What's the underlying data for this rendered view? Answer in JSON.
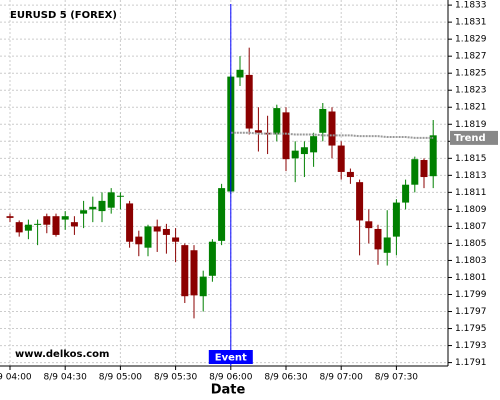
{
  "chart_data": {
    "type": "candlestick",
    "title": "EURUSD 5 (FOREX)",
    "watermark": "www.delkos.com",
    "x_label": "Date",
    "categories": [
      "8/9 04:00",
      null,
      null,
      null,
      null,
      null,
      "8/9 04:30",
      null,
      null,
      null,
      null,
      null,
      "8/9 05:00",
      null,
      null,
      null,
      null,
      null,
      "8/9 05:30",
      null,
      null,
      null,
      null,
      null,
      "8/9 06:00",
      null,
      null,
      null,
      null,
      null,
      "8/9 06:30",
      null,
      null,
      null,
      null,
      null,
      "8/9 07:00",
      null,
      null,
      null,
      null,
      null,
      "8/9 07:30",
      null,
      null,
      null,
      null
    ],
    "open": [
      1.18082,
      1.18075,
      1.18065,
      1.18072,
      1.18082,
      1.18082,
      1.18078,
      1.18075,
      1.18085,
      1.1809,
      1.18088,
      1.18092,
      1.18105,
      1.18097,
      1.18058,
      1.18045,
      1.1807,
      1.18067,
      1.18057,
      1.18048,
      1.18042,
      1.17988,
      1.18012,
      1.18053,
      1.18111,
      1.18245,
      1.18248,
      1.18183,
      1.1818,
      1.18178,
      1.18204,
      1.1815,
      1.18155,
      1.18157,
      1.1818,
      1.18205,
      1.18165,
      1.18134,
      1.18122,
      1.18076,
      1.18067,
      1.18039,
      1.18058,
      1.18098,
      1.18119,
      1.18148,
      1.18129
    ],
    "high": [
      1.18085,
      1.18077,
      1.18078,
      1.18078,
      1.18085,
      1.18085,
      1.18088,
      1.18082,
      1.181,
      1.18105,
      1.1811,
      1.18115,
      1.1811,
      1.181,
      1.18065,
      1.18072,
      1.18078,
      1.18073,
      1.18068,
      1.1805,
      1.18048,
      1.18018,
      1.18055,
      1.1812,
      1.18248,
      1.1827,
      1.1828,
      1.1821,
      1.182,
      1.18213,
      1.1821,
      1.1817,
      1.1817,
      1.1818,
      1.18215,
      1.1821,
      1.1817,
      1.18138,
      1.18125,
      1.1809,
      1.18072,
      1.18089,
      1.18102,
      1.18125,
      1.18152,
      1.1815,
      1.18195
    ],
    "low": [
      1.18075,
      1.18058,
      1.18055,
      1.18048,
      1.18062,
      1.18058,
      1.18066,
      1.1806,
      1.18068,
      1.18075,
      1.18075,
      1.18085,
      1.1809,
      1.18045,
      1.18035,
      1.18035,
      1.1804,
      1.18038,
      1.18028,
      1.1798,
      1.17962,
      1.1797,
      1.18005,
      1.18048,
      1.18108,
      1.18235,
      1.18178,
      1.18158,
      1.18155,
      1.1817,
      1.18135,
      1.18122,
      1.18128,
      1.1814,
      1.1817,
      1.1815,
      1.18125,
      1.1812,
      1.18036,
      1.1805,
      1.18025,
      1.18024,
      1.18036,
      1.1809,
      1.1811,
      1.18115,
      1.18115
    ],
    "close": [
      1.1808,
      1.18063,
      1.18072,
      1.18073,
      1.18072,
      1.1806,
      1.18082,
      1.1807,
      1.18089,
      1.18093,
      1.181,
      1.1811,
      1.18106,
      1.18052,
      1.18049,
      1.1807,
      1.18064,
      1.1806,
      1.18052,
      1.17988,
      1.17989,
      1.18011,
      1.18052,
      1.18115,
      1.18246,
      1.18254,
      1.18185,
      1.1818,
      1.18178,
      1.18209,
      1.18149,
      1.18159,
      1.18163,
      1.18176,
      1.18208,
      1.18165,
      1.18134,
      1.18128,
      1.18077,
      1.18068,
      1.18043,
      1.18057,
      1.18098,
      1.18119,
      1.18149,
      1.18128,
      1.18177
    ],
    "up_color": "#008000",
    "down_color": "#8b0000",
    "trend": {
      "name": "Trend",
      "color": "#999999",
      "values": [
        null,
        null,
        null,
        null,
        null,
        null,
        null,
        null,
        null,
        null,
        null,
        null,
        null,
        null,
        null,
        null,
        null,
        null,
        null,
        null,
        null,
        null,
        null,
        null,
        1.1818,
        1.1818,
        1.1818,
        1.18179,
        1.18179,
        1.18179,
        1.18179,
        1.18178,
        1.18178,
        1.18178,
        1.18177,
        1.18177,
        1.18177,
        1.18177,
        1.18176,
        1.18176,
        1.18176,
        1.18175,
        1.18175,
        1.18175,
        1.18174,
        1.18174,
        1.18174
      ]
    },
    "event": {
      "label": "Event",
      "x": "8/9 06:00",
      "color": "#0000ff"
    },
    "ylim": [
      1.17906,
      1.18336
    ],
    "yticks": [
      1.1791,
      1.1793,
      1.1795,
      1.1797,
      1.1799,
      1.1801,
      1.1803,
      1.1805,
      1.1807,
      1.1809,
      1.1811,
      1.1813,
      1.1815,
      1.1817,
      1.1819,
      1.1821,
      1.1823,
      1.1825,
      1.1827,
      1.1829,
      1.1831,
      1.1833
    ],
    "grid": true
  }
}
